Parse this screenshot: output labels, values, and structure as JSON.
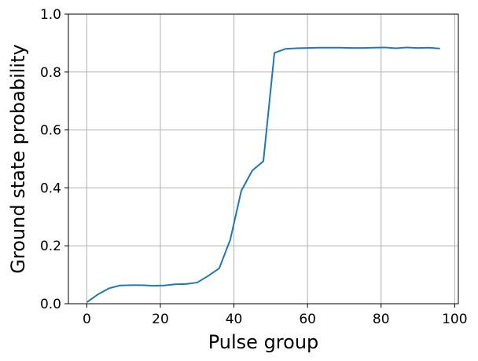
{
  "chart_data": {
    "type": "line",
    "title": "",
    "xlabel": "Pulse group",
    "ylabel": "Ground state probability",
    "xlim": [
      -5,
      101
    ],
    "ylim": [
      0,
      1.0
    ],
    "xticks": [
      0,
      20,
      40,
      60,
      80,
      100
    ],
    "xtick_labels": [
      "0",
      "20",
      "40",
      "60",
      "80",
      "100"
    ],
    "yticks": [
      0.0,
      0.2,
      0.4,
      0.6,
      0.8,
      1.0
    ],
    "ytick_labels": [
      "0.0",
      "0.2",
      "0.4",
      "0.6",
      "0.8",
      "1.0"
    ],
    "grid": true,
    "color": "#1f77b4",
    "series": [
      {
        "x": [
          0,
          3,
          6,
          9,
          12,
          15,
          18,
          21,
          24,
          27,
          30,
          33,
          36,
          39,
          42,
          45,
          48,
          51,
          54,
          57,
          60,
          63,
          66,
          69,
          72,
          75,
          78,
          81,
          84,
          87,
          90,
          93,
          96
        ],
        "y": [
          0.005,
          0.032,
          0.053,
          0.063,
          0.064,
          0.064,
          0.062,
          0.063,
          0.067,
          0.068,
          0.073,
          0.096,
          0.122,
          0.221,
          0.39,
          0.46,
          0.492,
          0.866,
          0.88,
          0.882,
          0.883,
          0.884,
          0.884,
          0.884,
          0.883,
          0.883,
          0.884,
          0.885,
          0.882,
          0.885,
          0.883,
          0.884,
          0.881
        ]
      }
    ]
  }
}
